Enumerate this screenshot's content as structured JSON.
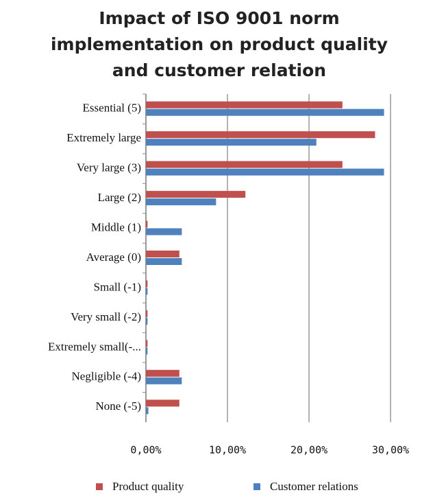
{
  "chart_data": {
    "type": "hbar",
    "title": "Impact of ISO 9001 norm implementation on product quality and customer relation",
    "categories": [
      "Essential   (5)",
      "Extremely large",
      "Very large  (3)",
      "Large (2)",
      "Middle (1)",
      "Average (0)",
      "Small  (-1)",
      "Very small (-2)",
      "Extremely small(-...",
      "Negligible  (-4)",
      "None  (-5)"
    ],
    "series": [
      {
        "name": "Product quality",
        "color": "#c0504d",
        "values": [
          24.1,
          28.1,
          24.1,
          12.2,
          0.2,
          4.1,
          0.2,
          0.2,
          0.2,
          4.1,
          4.1
        ]
      },
      {
        "name": "Customer relations",
        "color": "#4f81bd",
        "values": [
          29.2,
          20.9,
          29.2,
          8.6,
          4.4,
          4.4,
          0.2,
          0.2,
          0.2,
          4.4,
          0.3
        ]
      }
    ],
    "xlim": [
      0,
      31
    ],
    "xticks": [
      {
        "value": 0,
        "label": "0,00%"
      },
      {
        "value": 10,
        "label": "10,00%"
      },
      {
        "value": 20,
        "label": "20,00%"
      },
      {
        "value": 30,
        "label": "30,00%"
      }
    ],
    "grid": true,
    "legend": "bottom"
  }
}
